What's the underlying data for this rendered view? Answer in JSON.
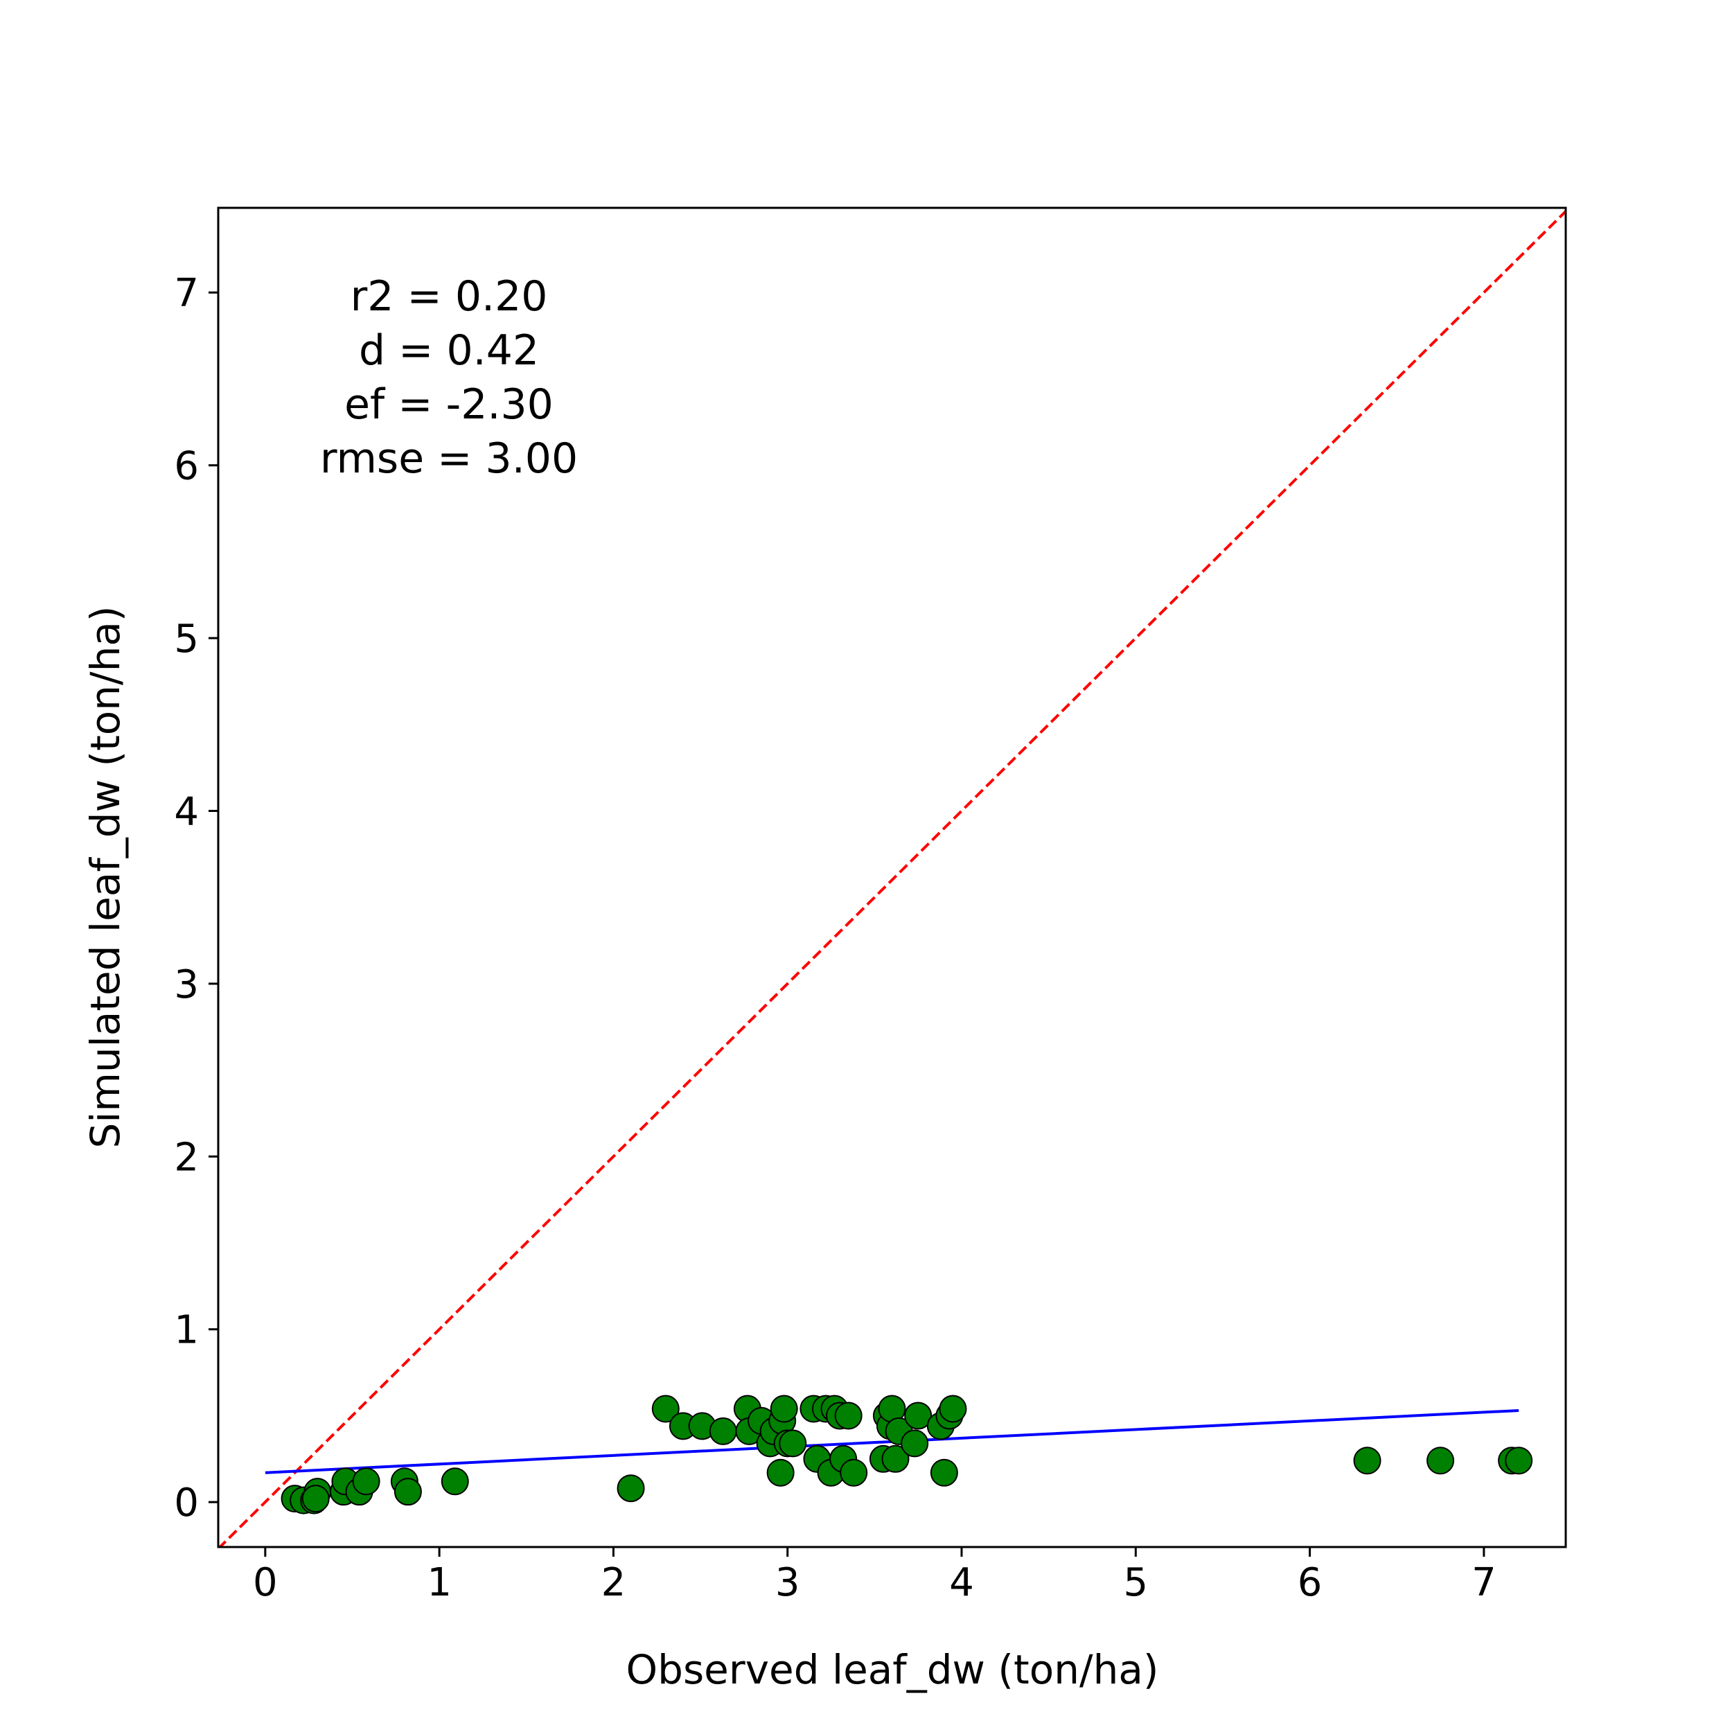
{
  "chart_data": {
    "type": "scatter",
    "title": "",
    "xlabel": "Observed leaf_dw (ton/ha)",
    "ylabel": "Simulated leaf_dw (ton/ha)",
    "xlim": [
      -0.27,
      7.47
    ],
    "ylim": [
      -0.26,
      7.49
    ],
    "x_ticks": [
      "0",
      "1",
      "2",
      "3",
      "4",
      "5",
      "6",
      "7"
    ],
    "y_ticks": [
      "0",
      "1",
      "2",
      "3",
      "4",
      "5",
      "6",
      "7"
    ],
    "grid": false,
    "legend": "none",
    "stats": [
      {
        "label": "r2 =",
        "value": "0.20"
      },
      {
        "label": "d =",
        "value": "0.42"
      },
      {
        "label": "ef =",
        "value": "-2.30"
      },
      {
        "label": "rmse =",
        "value": "3.00"
      }
    ],
    "points": {
      "color": "#008000",
      "edge_color": "#000000",
      "x": [
        0.17,
        0.22,
        0.28,
        0.3,
        0.29,
        0.45,
        0.46,
        0.54,
        0.58,
        0.8,
        0.82,
        1.09,
        2.1,
        2.3,
        2.4,
        2.51,
        2.63,
        2.77,
        2.78,
        2.85,
        2.9,
        2.92,
        2.96,
        2.97,
        2.98,
        3.0,
        3.03,
        3.15,
        3.17,
        3.22,
        3.25,
        3.27,
        3.3,
        3.32,
        3.35,
        3.38,
        3.55,
        3.57,
        3.59,
        3.6,
        3.62,
        3.64,
        3.73,
        3.75,
        3.88,
        3.9,
        3.93,
        3.95,
        6.33,
        6.75,
        7.16,
        7.2
      ],
      "y": [
        0.02,
        0.01,
        0.01,
        0.06,
        0.02,
        0.06,
        0.12,
        0.06,
        0.12,
        0.12,
        0.06,
        0.12,
        0.08,
        0.54,
        0.44,
        0.44,
        0.41,
        0.54,
        0.41,
        0.47,
        0.34,
        0.41,
        0.17,
        0.47,
        0.54,
        0.34,
        0.34,
        0.54,
        0.25,
        0.54,
        0.17,
        0.54,
        0.5,
        0.25,
        0.5,
        0.17,
        0.25,
        0.5,
        0.44,
        0.54,
        0.25,
        0.41,
        0.34,
        0.5,
        0.44,
        0.17,
        0.5,
        0.54,
        0.24,
        0.24,
        0.24,
        0.24
      ]
    },
    "fit_line": {
      "color": "#0000ff",
      "x": [
        0.0,
        7.2
      ],
      "y": [
        0.17,
        0.53
      ]
    },
    "identity_line": {
      "color": "#ff0000",
      "style": "dashed"
    }
  }
}
